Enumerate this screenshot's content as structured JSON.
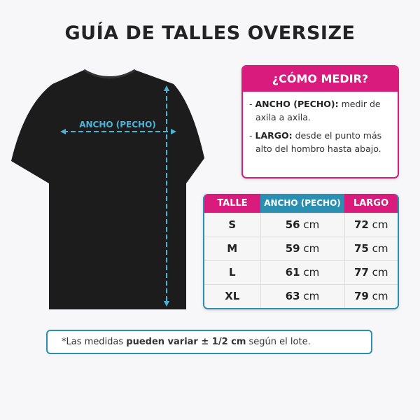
{
  "title": "GUÍA DE TALLES OVERSIZE",
  "diagram": {
    "width_label": "ANCHO (PECHO)",
    "arrow_color": "#4ab3d8",
    "shirt_color": "#1a1a1a"
  },
  "how_to": {
    "title": "¿CÓMO MEDIR?",
    "items": [
      {
        "term": "ANCHO (PECHO):",
        "desc": "medir de axila a axila."
      },
      {
        "term": "LARGO:",
        "desc": "desde el punto más alto del hombro hasta abajo."
      }
    ]
  },
  "table": {
    "headers": [
      "TALLE",
      "ANCHO (PECHO)",
      "LARGO"
    ],
    "unit": "cm",
    "rows": [
      {
        "size": "S",
        "width": "56",
        "length": "72"
      },
      {
        "size": "M",
        "width": "59",
        "length": "75"
      },
      {
        "size": "L",
        "width": "61",
        "length": "77"
      },
      {
        "size": "XL",
        "width": "63",
        "length": "79"
      }
    ]
  },
  "note": {
    "pre": "*Las medidas ",
    "bold": "pueden variar ± 1/2 cm",
    "post": " según el lote."
  },
  "colors": {
    "pink": "#d81b7c",
    "teal": "#2a8fb0"
  }
}
